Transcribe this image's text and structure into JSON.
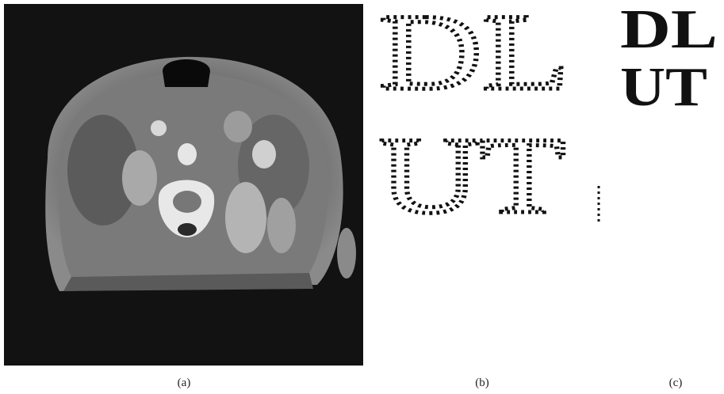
{
  "panels": [
    {
      "caption": "(a)"
    },
    {
      "caption": "(b)",
      "lines": [
        "DL",
        "UT"
      ]
    },
    {
      "caption": "(c)",
      "lines": [
        "DL",
        "UT"
      ]
    }
  ]
}
